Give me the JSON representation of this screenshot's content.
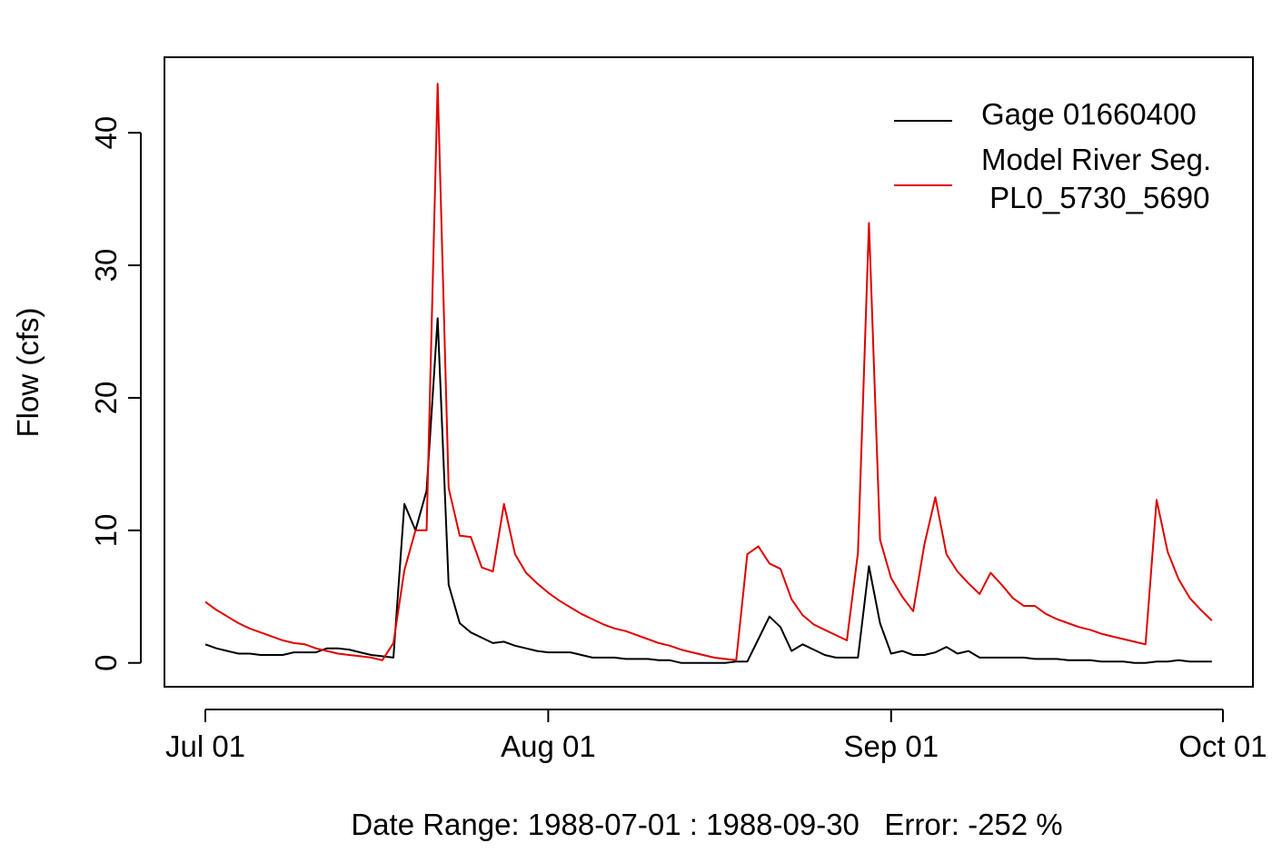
{
  "chart_data": {
    "type": "line",
    "title": "",
    "xlabel": "Date Range: 1988-07-01 : 1988-09-30   Error: -252 %",
    "ylabel": "Flow (cfs)",
    "x_range": [
      "1988-07-01",
      "1988-09-30"
    ],
    "ylim": [
      -1.8,
      45.7
    ],
    "grid": false,
    "legend_position": "top-right",
    "x_ticks": [
      {
        "date": "1988-07-01",
        "label": "Jul 01"
      },
      {
        "date": "1988-08-01",
        "label": "Aug 01"
      },
      {
        "date": "1988-09-01",
        "label": "Sep 01"
      },
      {
        "date": "1988-10-01",
        "label": "Oct 01"
      }
    ],
    "y_ticks": [
      0,
      10,
      20,
      30,
      40
    ],
    "series": [
      {
        "name": "Gage 01660400",
        "color": "#000000",
        "points": [
          [
            "1988-07-01",
            1.4
          ],
          [
            "1988-07-02",
            1.1
          ],
          [
            "1988-07-03",
            0.9
          ],
          [
            "1988-07-04",
            0.7
          ],
          [
            "1988-07-05",
            0.7
          ],
          [
            "1988-07-06",
            0.6
          ],
          [
            "1988-07-07",
            0.6
          ],
          [
            "1988-07-08",
            0.6
          ],
          [
            "1988-07-09",
            0.8
          ],
          [
            "1988-07-10",
            0.8
          ],
          [
            "1988-07-11",
            0.8
          ],
          [
            "1988-07-12",
            1.1
          ],
          [
            "1988-07-13",
            1.1
          ],
          [
            "1988-07-14",
            1.0
          ],
          [
            "1988-07-15",
            0.8
          ],
          [
            "1988-07-16",
            0.6
          ],
          [
            "1988-07-17",
            0.5
          ],
          [
            "1988-07-18",
            0.4
          ],
          [
            "1988-07-19",
            12.0
          ],
          [
            "1988-07-20",
            10.0
          ],
          [
            "1988-07-21",
            13.0
          ],
          [
            "1988-07-22",
            26.0
          ],
          [
            "1988-07-23",
            5.9
          ],
          [
            "1988-07-24",
            3.0
          ],
          [
            "1988-07-25",
            2.3
          ],
          [
            "1988-07-26",
            1.9
          ],
          [
            "1988-07-27",
            1.5
          ],
          [
            "1988-07-28",
            1.6
          ],
          [
            "1988-07-29",
            1.3
          ],
          [
            "1988-07-30",
            1.1
          ],
          [
            "1988-07-31",
            0.9
          ],
          [
            "1988-08-01",
            0.8
          ],
          [
            "1988-08-02",
            0.8
          ],
          [
            "1988-08-03",
            0.8
          ],
          [
            "1988-08-04",
            0.6
          ],
          [
            "1988-08-05",
            0.4
          ],
          [
            "1988-08-06",
            0.4
          ],
          [
            "1988-08-07",
            0.4
          ],
          [
            "1988-08-08",
            0.3
          ],
          [
            "1988-08-09",
            0.3
          ],
          [
            "1988-08-10",
            0.3
          ],
          [
            "1988-08-11",
            0.2
          ],
          [
            "1988-08-12",
            0.2
          ],
          [
            "1988-08-13",
            0.0
          ],
          [
            "1988-08-14",
            0.0
          ],
          [
            "1988-08-15",
            0.0
          ],
          [
            "1988-08-16",
            0.0
          ],
          [
            "1988-08-17",
            0.0
          ],
          [
            "1988-08-18",
            0.1
          ],
          [
            "1988-08-19",
            0.1
          ],
          [
            "1988-08-20",
            1.8
          ],
          [
            "1988-08-21",
            3.5
          ],
          [
            "1988-08-22",
            2.7
          ],
          [
            "1988-08-23",
            0.9
          ],
          [
            "1988-08-24",
            1.4
          ],
          [
            "1988-08-25",
            1.0
          ],
          [
            "1988-08-26",
            0.6
          ],
          [
            "1988-08-27",
            0.4
          ],
          [
            "1988-08-28",
            0.4
          ],
          [
            "1988-08-29",
            0.4
          ],
          [
            "1988-08-30",
            7.3
          ],
          [
            "1988-08-31",
            3.0
          ],
          [
            "1988-09-01",
            0.7
          ],
          [
            "1988-09-02",
            0.9
          ],
          [
            "1988-09-03",
            0.6
          ],
          [
            "1988-09-04",
            0.6
          ],
          [
            "1988-09-05",
            0.8
          ],
          [
            "1988-09-06",
            1.2
          ],
          [
            "1988-09-07",
            0.7
          ],
          [
            "1988-09-08",
            0.9
          ],
          [
            "1988-09-09",
            0.4
          ],
          [
            "1988-09-10",
            0.4
          ],
          [
            "1988-09-11",
            0.4
          ],
          [
            "1988-09-12",
            0.4
          ],
          [
            "1988-09-13",
            0.4
          ],
          [
            "1988-09-14",
            0.3
          ],
          [
            "1988-09-15",
            0.3
          ],
          [
            "1988-09-16",
            0.3
          ],
          [
            "1988-09-17",
            0.2
          ],
          [
            "1988-09-18",
            0.2
          ],
          [
            "1988-09-19",
            0.2
          ],
          [
            "1988-09-20",
            0.1
          ],
          [
            "1988-09-21",
            0.1
          ],
          [
            "1988-09-22",
            0.1
          ],
          [
            "1988-09-23",
            0.0
          ],
          [
            "1988-09-24",
            0.0
          ],
          [
            "1988-09-25",
            0.1
          ],
          [
            "1988-09-26",
            0.1
          ],
          [
            "1988-09-27",
            0.2
          ],
          [
            "1988-09-28",
            0.1
          ],
          [
            "1988-09-29",
            0.1
          ],
          [
            "1988-09-30",
            0.1
          ]
        ]
      },
      {
        "name": "Model River Seg.\n PL0_5730_5690",
        "color": "#e00000",
        "points": [
          [
            "1988-07-01",
            4.6
          ],
          [
            "1988-07-02",
            4.0
          ],
          [
            "1988-07-03",
            3.5
          ],
          [
            "1988-07-04",
            3.0
          ],
          [
            "1988-07-05",
            2.6
          ],
          [
            "1988-07-06",
            2.3
          ],
          [
            "1988-07-07",
            2.0
          ],
          [
            "1988-07-08",
            1.7
          ],
          [
            "1988-07-09",
            1.5
          ],
          [
            "1988-07-10",
            1.4
          ],
          [
            "1988-07-11",
            1.1
          ],
          [
            "1988-07-12",
            0.9
          ],
          [
            "1988-07-13",
            0.7
          ],
          [
            "1988-07-14",
            0.6
          ],
          [
            "1988-07-15",
            0.5
          ],
          [
            "1988-07-16",
            0.4
          ],
          [
            "1988-07-17",
            0.2
          ],
          [
            "1988-07-18",
            1.5
          ],
          [
            "1988-07-19",
            7.0
          ],
          [
            "1988-07-20",
            10.0
          ],
          [
            "1988-07-21",
            10.0
          ],
          [
            "1988-07-22",
            43.7
          ],
          [
            "1988-07-23",
            13.2
          ],
          [
            "1988-07-24",
            9.6
          ],
          [
            "1988-07-25",
            9.5
          ],
          [
            "1988-07-26",
            7.2
          ],
          [
            "1988-07-27",
            6.9
          ],
          [
            "1988-07-28",
            12.0
          ],
          [
            "1988-07-29",
            8.2
          ],
          [
            "1988-07-30",
            6.8
          ],
          [
            "1988-07-31",
            6.0
          ],
          [
            "1988-08-01",
            5.3
          ],
          [
            "1988-08-02",
            4.7
          ],
          [
            "1988-08-03",
            4.2
          ],
          [
            "1988-08-04",
            3.7
          ],
          [
            "1988-08-05",
            3.3
          ],
          [
            "1988-08-06",
            2.9
          ],
          [
            "1988-08-07",
            2.6
          ],
          [
            "1988-08-08",
            2.4
          ],
          [
            "1988-08-09",
            2.1
          ],
          [
            "1988-08-10",
            1.8
          ],
          [
            "1988-08-11",
            1.5
          ],
          [
            "1988-08-12",
            1.3
          ],
          [
            "1988-08-13",
            1.0
          ],
          [
            "1988-08-14",
            0.8
          ],
          [
            "1988-08-15",
            0.6
          ],
          [
            "1988-08-16",
            0.4
          ],
          [
            "1988-08-17",
            0.3
          ],
          [
            "1988-08-18",
            0.2
          ],
          [
            "1988-08-19",
            8.2
          ],
          [
            "1988-08-20",
            8.8
          ],
          [
            "1988-08-21",
            7.5
          ],
          [
            "1988-08-22",
            7.1
          ],
          [
            "1988-08-23",
            4.8
          ],
          [
            "1988-08-24",
            3.6
          ],
          [
            "1988-08-25",
            2.9
          ],
          [
            "1988-08-26",
            2.5
          ],
          [
            "1988-08-27",
            2.1
          ],
          [
            "1988-08-28",
            1.7
          ],
          [
            "1988-08-29",
            8.3
          ],
          [
            "1988-08-30",
            33.2
          ],
          [
            "1988-08-31",
            9.3
          ],
          [
            "1988-09-01",
            6.4
          ],
          [
            "1988-09-02",
            5.0
          ],
          [
            "1988-09-03",
            3.9
          ],
          [
            "1988-09-04",
            8.9
          ],
          [
            "1988-09-05",
            12.5
          ],
          [
            "1988-09-06",
            8.2
          ],
          [
            "1988-09-07",
            6.9
          ],
          [
            "1988-09-08",
            6.0
          ],
          [
            "1988-09-09",
            5.2
          ],
          [
            "1988-09-10",
            6.8
          ],
          [
            "1988-09-11",
            5.9
          ],
          [
            "1988-09-12",
            4.9
          ],
          [
            "1988-09-13",
            4.3
          ],
          [
            "1988-09-14",
            4.3
          ],
          [
            "1988-09-15",
            3.7
          ],
          [
            "1988-09-16",
            3.3
          ],
          [
            "1988-09-17",
            3.0
          ],
          [
            "1988-09-18",
            2.7
          ],
          [
            "1988-09-19",
            2.5
          ],
          [
            "1988-09-20",
            2.2
          ],
          [
            "1988-09-21",
            2.0
          ],
          [
            "1988-09-22",
            1.8
          ],
          [
            "1988-09-23",
            1.6
          ],
          [
            "1988-09-24",
            1.4
          ],
          [
            "1988-09-25",
            12.3
          ],
          [
            "1988-09-26",
            8.4
          ],
          [
            "1988-09-27",
            6.3
          ],
          [
            "1988-09-28",
            4.9
          ],
          [
            "1988-09-29",
            4.0
          ],
          [
            "1988-09-30",
            3.2
          ]
        ]
      }
    ]
  }
}
